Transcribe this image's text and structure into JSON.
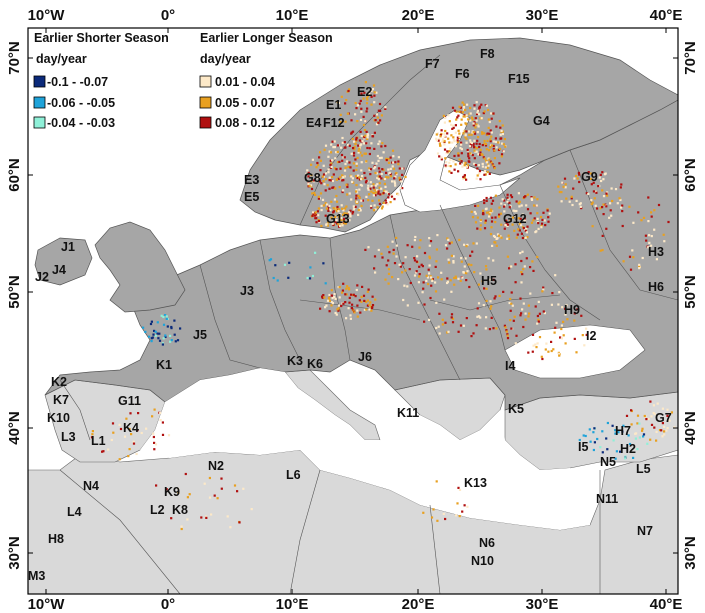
{
  "map": {
    "axes": {
      "top": [
        "10°W",
        "0°",
        "10°E",
        "20°E",
        "30°E",
        "40°E"
      ],
      "bottom": [
        "10°W",
        "0°",
        "10°E",
        "20°E",
        "30°E",
        "40°E"
      ],
      "left": [
        "70°N",
        "60°N",
        "50°N",
        "40°N",
        "30°N"
      ],
      "right": [
        "70°N",
        "60°N",
        "50°N",
        "40°N",
        "30°N"
      ]
    },
    "legend": {
      "shorter": {
        "title": "Earlier Shorter Season",
        "unit": "day/year",
        "items": [
          {
            "label": "-0.1 - -0.07",
            "color": "#0b2a7a"
          },
          {
            "label": "-0.06 - -0.05",
            "color": "#1fa3d9"
          },
          {
            "label": "-0.04 - -0.03",
            "color": "#8ff0d8"
          }
        ]
      },
      "longer": {
        "title": "Earlier Longer Season",
        "unit": "day/year",
        "items": [
          {
            "label": "0.01 - 0.04",
            "color": "#fde9c8"
          },
          {
            "label": "0.05 - 0.07",
            "color": "#e8a020"
          },
          {
            "label": "0.08 - 0.12",
            "color": "#b01010"
          }
        ]
      }
    },
    "regions": [
      "F8",
      "F7",
      "F6",
      "F15",
      "E2",
      "E1",
      "E4",
      "F12",
      "G4",
      "E3",
      "G8",
      "E5",
      "G9",
      "G13",
      "G12",
      "J1",
      "J2",
      "J4",
      "H3",
      "H5",
      "H6",
      "J3",
      "H9",
      "J5",
      "I2",
      "K1",
      "K3",
      "K6",
      "J6",
      "I4",
      "K2",
      "K7",
      "G11",
      "K10",
      "K4",
      "L3",
      "L1",
      "K11",
      "K5",
      "H7",
      "G7",
      "H2",
      "I5",
      "N5",
      "L5",
      "N2",
      "L6",
      "N4",
      "K9",
      "L2",
      "K8",
      "K13",
      "N11",
      "L4",
      "H8",
      "N6",
      "N10",
      "N7",
      "M3"
    ],
    "colors": {
      "land_dark": "#a6a6a6",
      "land_light": "#d9d9d9",
      "sea": "#ffffff",
      "border": "#555555"
    }
  }
}
